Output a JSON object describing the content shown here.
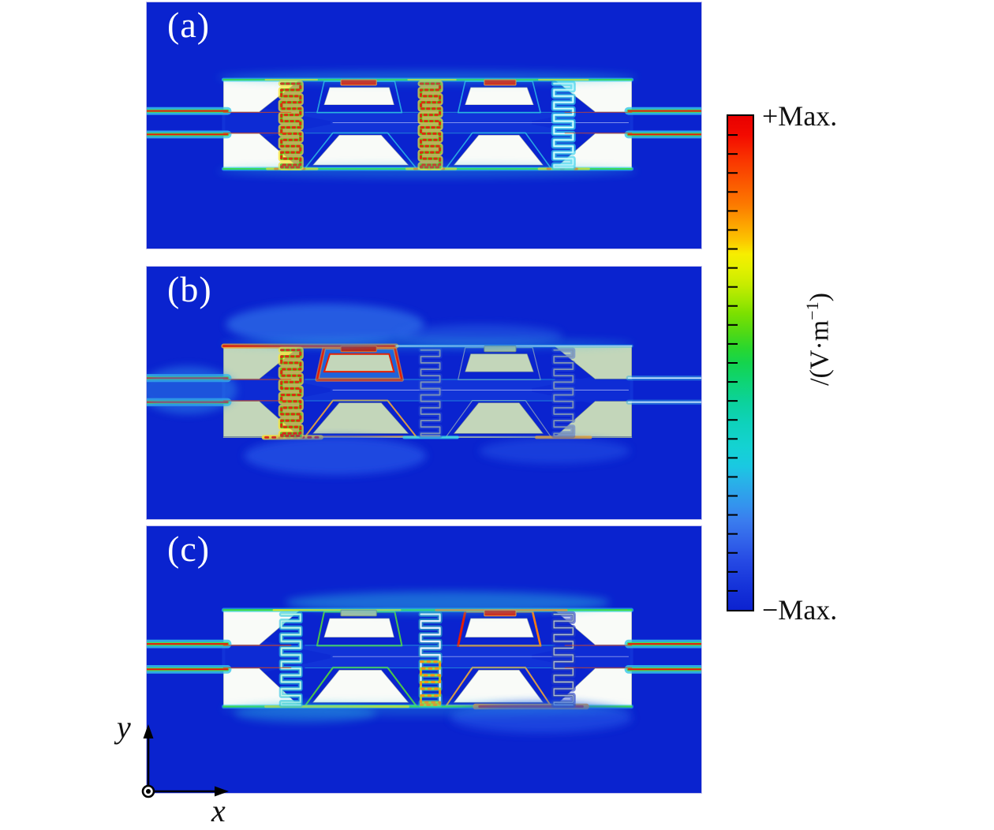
{
  "figure": {
    "panels": [
      {
        "id": "a",
        "label": "(a)",
        "plate": "white",
        "springs": [
          "hot",
          "hot",
          "cyan"
        ],
        "bars": [
          "red",
          "red"
        ],
        "top_edge": "green",
        "bottom_edge": "green-yellow",
        "island_outlines": {
          "t1": "cyan",
          "t2": "cyan",
          "b1": "cyan",
          "b2": "cyan"
        },
        "feeds": {
          "left": "hot",
          "right": "hot"
        },
        "blobs": "mild"
      },
      {
        "id": "b",
        "label": "(b)",
        "plate": "sage",
        "springs": [
          "hot",
          "outline",
          "outline"
        ],
        "bars": [
          "darkred",
          "muted"
        ],
        "top_edge": "hot-left",
        "bottom_edge": "mixed-b",
        "island_outlines": {
          "t1": "red",
          "t2": "faint",
          "b1": "warm",
          "b2": "faint"
        },
        "feeds": {
          "left": "hot",
          "right": "cool"
        },
        "blobs": "b"
      },
      {
        "id": "c",
        "label": "(c)",
        "plate": "white",
        "springs": [
          "cyan2",
          "mixed",
          "dark"
        ],
        "bars": [
          "muted",
          "red"
        ],
        "top_edge": "green-orange",
        "bottom_edge": "red-right",
        "island_outlines": {
          "t1": "green",
          "t2": "red-orange",
          "b1": "green",
          "b2": "warm"
        },
        "feeds": {
          "left": "hot",
          "right": "hot"
        },
        "blobs": "c"
      }
    ],
    "colorbar": {
      "top_label": "+Max.",
      "bottom_label": "−Max.",
      "unit_prefix": "/(V·m",
      "unit_sup": "−1",
      "unit_suffix": ")",
      "tick_count": 25,
      "gradient_stops": [
        [
          0,
          "#e80000"
        ],
        [
          4,
          "#f30b00"
        ],
        [
          8,
          "#f92e00"
        ],
        [
          13,
          "#fb5400"
        ],
        [
          18,
          "#fc7a00"
        ],
        [
          22,
          "#fda400"
        ],
        [
          25,
          "#fcc300"
        ],
        [
          28,
          "#f7ee00"
        ],
        [
          31,
          "#e2f000"
        ],
        [
          34,
          "#c8ec00"
        ],
        [
          37,
          "#a4e800"
        ],
        [
          40,
          "#7ce000"
        ],
        [
          44,
          "#4ed916"
        ],
        [
          47,
          "#2ad72e"
        ],
        [
          50,
          "#14d44e"
        ],
        [
          54,
          "#0ed476"
        ],
        [
          58,
          "#0cd29c"
        ],
        [
          62,
          "#0ed2ba"
        ],
        [
          67,
          "#14d2d2"
        ],
        [
          71,
          "#1ac8e2"
        ],
        [
          74,
          "#28b2e8"
        ],
        [
          79,
          "#3492ee"
        ],
        [
          82,
          "#3a7cee"
        ],
        [
          86,
          "#3263ea"
        ],
        [
          90,
          "#264ae4"
        ],
        [
          95,
          "#1634da"
        ],
        [
          100,
          "#0c22d0"
        ]
      ]
    },
    "axes": {
      "x_label": "x",
      "y_label": "y"
    },
    "palette": {
      "bg": "#0a23cf",
      "channel": "#1133d8",
      "taper": "#0e2bd4",
      "plate_white": "#f9fbf8",
      "plate_sage": "#c3d6ba",
      "plate_stroke_white": "#aeb8b0",
      "plate_stroke_sage": "#8fa28b",
      "feed_styles": {
        "hot": [
          [
            "#36c8e8",
            10,
            0.8
          ],
          [
            "#42e05a",
            4.5,
            0.95
          ],
          [
            "#e81a08",
            2,
            1
          ]
        ],
        "cool": [
          [
            "#3ab4e4",
            6,
            0.5
          ],
          [
            "#d8f2ff",
            1.6,
            0.95
          ]
        ]
      },
      "spring_styles": {
        "hot": {
          "layers": [
            [
              "#ffe62e",
              8,
              0.72
            ],
            [
              "#5ad41e",
              3.6,
              1
            ]
          ],
          "dash": [
            "#e42410",
            3,
            0.95,
            "2.6 4.2"
          ]
        },
        "cyan": {
          "layers": [
            [
              "#34d0ec",
              7,
              0.65
            ],
            [
              "#7ceaf6",
              3,
              0.95
            ],
            [
              "#f0fdff",
              1.2,
              0.9
            ]
          ]
        },
        "cyan2": {
          "layers": [
            [
              "#2cc4e2",
              6,
              0.6
            ],
            [
              "#74e2d8",
              2.8,
              0.95
            ],
            [
              "#d8f8f2",
              1.1,
              0.9
            ]
          ]
        },
        "outline": {
          "layers": [
            [
              "#2e52d8",
              6,
              0.4
            ],
            [
              "#8398b4",
              1.8,
              0.95
            ]
          ]
        },
        "dark": {
          "layers": [
            [
              "#2038c8",
              7,
              0.6
            ],
            [
              "#50629e",
              2.6,
              1
            ],
            [
              "#c8d6ee",
              1,
              0.85
            ]
          ]
        },
        "mixed": {
          "layers": [
            [
              "#38d8c0",
              6,
              0.5
            ],
            [
              "#eef9ff",
              2.2,
              0.95
            ]
          ],
          "lower": [
            "#9ade2c",
            3,
            0.95
          ],
          "lower_dash": [
            "#ff8c14",
            3,
            0.9,
            "2.6 6"
          ]
        }
      },
      "bar_styles": {
        "red": {
          "fill": "#e81800",
          "stroke": "#ff9a2e"
        },
        "darkred": {
          "fill": "#cc1400",
          "stroke": "#e86a1a"
        },
        "muted": {
          "fill": "#a9bfa0",
          "stroke": "#7d8f77"
        }
      },
      "outline_styles": {
        "cyan": [
          [
            "#2fc6e6",
            1.6,
            0.8
          ]
        ],
        "green": [
          [
            "#52d83a",
            2,
            0.9
          ]
        ],
        "red": [
          [
            "#ff9a2e",
            5,
            0.6
          ],
          [
            "#e61e00",
            2.4,
            1
          ]
        ],
        "faint": [
          [
            "#90a4bc",
            1.2,
            0.8
          ]
        ],
        "warm": [
          [
            "#ffb02e",
            2,
            0.85
          ]
        ],
        "red-orange": [
          [
            "#ff8c1e",
            2.2,
            0.9
          ]
        ]
      }
    }
  },
  "chart_data": {
    "type": "heatmap",
    "title": "",
    "panels": [
      {
        "label": "(a)",
        "description": "Simulated field map: hot (red/yellow) regions on left and middle meander springs, feed lines red on both sides"
      },
      {
        "label": "(b)",
        "description": "Simulated field map on gray-green plate: hot region concentrated at upper-left trapezoid and left meander spring; left feed hot, right feed faint"
      },
      {
        "label": "(c)",
        "description": "Simulated field map: hot region at second trapezoid top bar and lower-right spring anchor; feed lines red on both sides"
      }
    ],
    "colorbar": {
      "max_label": "+Max.",
      "min_label": "−Max.",
      "unit": "/(V·m⁻¹)",
      "scale": "red (+Max.) → yellow → green → cyan → blue (−Max.)"
    },
    "axes": {
      "x": "x",
      "y": "y"
    },
    "layout": {
      "panel_rows": 3,
      "colorbar_position": "right",
      "grid": false
    }
  }
}
